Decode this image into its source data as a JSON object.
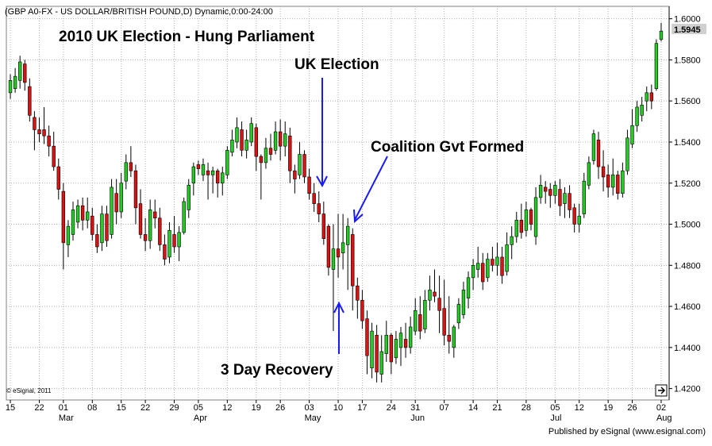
{
  "window": {
    "header": "(GBP A0-FX - US DOLLAR/BRITISH POUND,D) Dynamic,0:00-24:00",
    "copyright": "© eSignal, 2011",
    "footer": "Published by eSignal (www.esignal.com)"
  },
  "annotations": {
    "title": "2010 UK Election - Hung Parliament",
    "election": "UK Election",
    "coalition": "Coalition Gvt Formed",
    "recovery": "3 Day Recovery"
  },
  "colors": {
    "up": "#22cc22",
    "down": "#dd1111",
    "grid": "#b0b0b0",
    "arrow": "#1a1aff",
    "last_bg": "#d0d0d0"
  },
  "chart_data": {
    "type": "candlestick",
    "y_ticks": [
      "1.4200",
      "1.4400",
      "1.4600",
      "1.4800",
      "1.5000",
      "1.5200",
      "1.5400",
      "1.5600",
      "1.5800",
      "1.6000"
    ],
    "ylim": [
      1.416,
      1.6045
    ],
    "last_price": "1.5945",
    "x_ticks": [
      "15",
      "22",
      "01",
      "08",
      "15",
      "22",
      "29",
      "05",
      "12",
      "19",
      "26",
      "03",
      "10",
      "17",
      "24",
      "31",
      "07",
      "14",
      "21",
      "28",
      "05",
      "12",
      "19",
      "26",
      "02"
    ],
    "months": [
      "Mar",
      "Apr",
      "May",
      "Jun",
      "Jul",
      "Aug"
    ],
    "month_after_tick_index": [
      2,
      7,
      11,
      15,
      20,
      24
    ],
    "candles": [
      {
        "o": 1.564,
        "h": 1.573,
        "l": 1.561,
        "c": 1.57
      },
      {
        "o": 1.566,
        "h": 1.576,
        "l": 1.564,
        "c": 1.572
      },
      {
        "o": 1.57,
        "h": 1.582,
        "l": 1.566,
        "c": 1.579
      },
      {
        "o": 1.578,
        "h": 1.58,
        "l": 1.565,
        "c": 1.569
      },
      {
        "o": 1.567,
        "h": 1.571,
        "l": 1.55,
        "c": 1.553
      },
      {
        "o": 1.552,
        "h": 1.555,
        "l": 1.536,
        "c": 1.546
      },
      {
        "o": 1.546,
        "h": 1.552,
        "l": 1.54,
        "c": 1.544
      },
      {
        "o": 1.546,
        "h": 1.557,
        "l": 1.539,
        "c": 1.543
      },
      {
        "o": 1.543,
        "h": 1.548,
        "l": 1.533,
        "c": 1.538
      },
      {
        "o": 1.538,
        "h": 1.545,
        "l": 1.526,
        "c": 1.528
      },
      {
        "o": 1.528,
        "h": 1.532,
        "l": 1.512,
        "c": 1.517
      },
      {
        "o": 1.516,
        "h": 1.52,
        "l": 1.478,
        "c": 1.491
      },
      {
        "o": 1.49,
        "h": 1.502,
        "l": 1.484,
        "c": 1.499
      },
      {
        "o": 1.495,
        "h": 1.511,
        "l": 1.492,
        "c": 1.507
      },
      {
        "o": 1.501,
        "h": 1.512,
        "l": 1.498,
        "c": 1.509
      },
      {
        "o": 1.509,
        "h": 1.513,
        "l": 1.497,
        "c": 1.502
      },
      {
        "o": 1.502,
        "h": 1.513,
        "l": 1.498,
        "c": 1.506
      },
      {
        "o": 1.504,
        "h": 1.508,
        "l": 1.492,
        "c": 1.495
      },
      {
        "o": 1.495,
        "h": 1.5,
        "l": 1.486,
        "c": 1.489
      },
      {
        "o": 1.491,
        "h": 1.509,
        "l": 1.487,
        "c": 1.505
      },
      {
        "o": 1.505,
        "h": 1.509,
        "l": 1.489,
        "c": 1.492
      },
      {
        "o": 1.495,
        "h": 1.522,
        "l": 1.493,
        "c": 1.518
      },
      {
        "o": 1.515,
        "h": 1.522,
        "l": 1.5,
        "c": 1.506
      },
      {
        "o": 1.506,
        "h": 1.525,
        "l": 1.503,
        "c": 1.52
      },
      {
        "o": 1.521,
        "h": 1.534,
        "l": 1.517,
        "c": 1.53
      },
      {
        "o": 1.53,
        "h": 1.538,
        "l": 1.523,
        "c": 1.526
      },
      {
        "o": 1.526,
        "h": 1.529,
        "l": 1.5,
        "c": 1.508
      },
      {
        "o": 1.51,
        "h": 1.517,
        "l": 1.493,
        "c": 1.495
      },
      {
        "o": 1.495,
        "h": 1.503,
        "l": 1.487,
        "c": 1.492
      },
      {
        "o": 1.492,
        "h": 1.512,
        "l": 1.488,
        "c": 1.507
      },
      {
        "o": 1.506,
        "h": 1.512,
        "l": 1.498,
        "c": 1.503
      },
      {
        "o": 1.503,
        "h": 1.508,
        "l": 1.487,
        "c": 1.49
      },
      {
        "o": 1.49,
        "h": 1.495,
        "l": 1.48,
        "c": 1.483
      },
      {
        "o": 1.484,
        "h": 1.501,
        "l": 1.481,
        "c": 1.497
      },
      {
        "o": 1.495,
        "h": 1.504,
        "l": 1.486,
        "c": 1.489
      },
      {
        "o": 1.489,
        "h": 1.499,
        "l": 1.482,
        "c": 1.496
      },
      {
        "o": 1.496,
        "h": 1.513,
        "l": 1.495,
        "c": 1.511
      },
      {
        "o": 1.507,
        "h": 1.522,
        "l": 1.503,
        "c": 1.519
      },
      {
        "o": 1.52,
        "h": 1.53,
        "l": 1.514,
        "c": 1.528
      },
      {
        "o": 1.529,
        "h": 1.531,
        "l": 1.524,
        "c": 1.527
      },
      {
        "o": 1.524,
        "h": 1.532,
        "l": 1.521,
        "c": 1.529
      },
      {
        "o": 1.526,
        "h": 1.53,
        "l": 1.512,
        "c": 1.524
      },
      {
        "o": 1.524,
        "h": 1.528,
        "l": 1.515,
        "c": 1.526
      },
      {
        "o": 1.526,
        "h": 1.527,
        "l": 1.513,
        "c": 1.52
      },
      {
        "o": 1.52,
        "h": 1.528,
        "l": 1.514,
        "c": 1.525
      },
      {
        "o": 1.524,
        "h": 1.538,
        "l": 1.522,
        "c": 1.536
      },
      {
        "o": 1.535,
        "h": 1.546,
        "l": 1.533,
        "c": 1.541
      },
      {
        "o": 1.54,
        "h": 1.552,
        "l": 1.537,
        "c": 1.547
      },
      {
        "o": 1.546,
        "h": 1.55,
        "l": 1.533,
        "c": 1.536
      },
      {
        "o": 1.536,
        "h": 1.546,
        "l": 1.532,
        "c": 1.541
      },
      {
        "o": 1.54,
        "h": 1.552,
        "l": 1.538,
        "c": 1.549
      },
      {
        "o": 1.547,
        "h": 1.549,
        "l": 1.526,
        "c": 1.533
      },
      {
        "o": 1.533,
        "h": 1.534,
        "l": 1.512,
        "c": 1.53
      },
      {
        "o": 1.53,
        "h": 1.542,
        "l": 1.527,
        "c": 1.537
      },
      {
        "o": 1.537,
        "h": 1.544,
        "l": 1.531,
        "c": 1.534
      },
      {
        "o": 1.536,
        "h": 1.55,
        "l": 1.534,
        "c": 1.545
      },
      {
        "o": 1.545,
        "h": 1.551,
        "l": 1.531,
        "c": 1.538
      },
      {
        "o": 1.538,
        "h": 1.55,
        "l": 1.533,
        "c": 1.544
      },
      {
        "o": 1.543,
        "h": 1.547,
        "l": 1.52,
        "c": 1.526
      },
      {
        "o": 1.526,
        "h": 1.529,
        "l": 1.515,
        "c": 1.522
      },
      {
        "o": 1.524,
        "h": 1.54,
        "l": 1.522,
        "c": 1.534
      },
      {
        "o": 1.534,
        "h": 1.536,
        "l": 1.52,
        "c": 1.523
      },
      {
        "o": 1.523,
        "h": 1.527,
        "l": 1.512,
        "c": 1.515
      },
      {
        "o": 1.515,
        "h": 1.52,
        "l": 1.506,
        "c": 1.51
      },
      {
        "o": 1.51,
        "h": 1.516,
        "l": 1.501,
        "c": 1.505
      },
      {
        "o": 1.505,
        "h": 1.511,
        "l": 1.49,
        "c": 1.493
      },
      {
        "o": 1.499,
        "h": 1.5,
        "l": 1.475,
        "c": 1.479
      },
      {
        "o": 1.478,
        "h": 1.5,
        "l": 1.448,
        "c": 1.488
      },
      {
        "o": 1.488,
        "h": 1.505,
        "l": 1.474,
        "c": 1.484
      },
      {
        "o": 1.486,
        "h": 1.505,
        "l": 1.478,
        "c": 1.491
      },
      {
        "o": 1.49,
        "h": 1.503,
        "l": 1.468,
        "c": 1.499
      },
      {
        "o": 1.495,
        "h": 1.498,
        "l": 1.458,
        "c": 1.47
      },
      {
        "o": 1.47,
        "h": 1.474,
        "l": 1.454,
        "c": 1.463
      },
      {
        "o": 1.463,
        "h": 1.468,
        "l": 1.449,
        "c": 1.453
      },
      {
        "o": 1.454,
        "h": 1.458,
        "l": 1.427,
        "c": 1.436
      },
      {
        "o": 1.43,
        "h": 1.452,
        "l": 1.425,
        "c": 1.448
      },
      {
        "o": 1.446,
        "h": 1.451,
        "l": 1.423,
        "c": 1.428
      },
      {
        "o": 1.427,
        "h": 1.446,
        "l": 1.423,
        "c": 1.438
      },
      {
        "o": 1.437,
        "h": 1.453,
        "l": 1.433,
        "c": 1.446
      },
      {
        "o": 1.446,
        "h": 1.447,
        "l": 1.427,
        "c": 1.433
      },
      {
        "o": 1.435,
        "h": 1.448,
        "l": 1.432,
        "c": 1.444
      },
      {
        "o": 1.44,
        "h": 1.45,
        "l": 1.431,
        "c": 1.447
      },
      {
        "o": 1.444,
        "h": 1.452,
        "l": 1.435,
        "c": 1.44
      },
      {
        "o": 1.44,
        "h": 1.455,
        "l": 1.437,
        "c": 1.45
      },
      {
        "o": 1.448,
        "h": 1.464,
        "l": 1.446,
        "c": 1.458
      },
      {
        "o": 1.456,
        "h": 1.465,
        "l": 1.444,
        "c": 1.448
      },
      {
        "o": 1.449,
        "h": 1.468,
        "l": 1.447,
        "c": 1.463
      },
      {
        "o": 1.463,
        "h": 1.475,
        "l": 1.458,
        "c": 1.468
      },
      {
        "o": 1.467,
        "h": 1.478,
        "l": 1.462,
        "c": 1.465
      },
      {
        "o": 1.464,
        "h": 1.475,
        "l": 1.447,
        "c": 1.458
      },
      {
        "o": 1.459,
        "h": 1.473,
        "l": 1.441,
        "c": 1.446
      },
      {
        "o": 1.446,
        "h": 1.465,
        "l": 1.437,
        "c": 1.443
      },
      {
        "o": 1.44,
        "h": 1.451,
        "l": 1.435,
        "c": 1.45
      },
      {
        "o": 1.452,
        "h": 1.464,
        "l": 1.449,
        "c": 1.461
      },
      {
        "o": 1.456,
        "h": 1.472,
        "l": 1.454,
        "c": 1.468
      },
      {
        "o": 1.464,
        "h": 1.477,
        "l": 1.459,
        "c": 1.474
      },
      {
        "o": 1.474,
        "h": 1.483,
        "l": 1.468,
        "c": 1.48
      },
      {
        "o": 1.478,
        "h": 1.489,
        "l": 1.474,
        "c": 1.481
      },
      {
        "o": 1.481,
        "h": 1.486,
        "l": 1.468,
        "c": 1.472
      },
      {
        "o": 1.474,
        "h": 1.486,
        "l": 1.472,
        "c": 1.483
      },
      {
        "o": 1.483,
        "h": 1.489,
        "l": 1.477,
        "c": 1.48
      },
      {
        "o": 1.48,
        "h": 1.491,
        "l": 1.475,
        "c": 1.484
      },
      {
        "o": 1.484,
        "h": 1.489,
        "l": 1.471,
        "c": 1.475
      },
      {
        "o": 1.477,
        "h": 1.496,
        "l": 1.475,
        "c": 1.49
      },
      {
        "o": 1.49,
        "h": 1.499,
        "l": 1.483,
        "c": 1.494
      },
      {
        "o": 1.494,
        "h": 1.506,
        "l": 1.491,
        "c": 1.502
      },
      {
        "o": 1.502,
        "h": 1.51,
        "l": 1.493,
        "c": 1.496
      },
      {
        "o": 1.497,
        "h": 1.511,
        "l": 1.494,
        "c": 1.507
      },
      {
        "o": 1.507,
        "h": 1.508,
        "l": 1.497,
        "c": 1.5
      },
      {
        "o": 1.494,
        "h": 1.518,
        "l": 1.49,
        "c": 1.513
      },
      {
        "o": 1.513,
        "h": 1.524,
        "l": 1.51,
        "c": 1.519
      },
      {
        "o": 1.518,
        "h": 1.521,
        "l": 1.51,
        "c": 1.516
      },
      {
        "o": 1.517,
        "h": 1.52,
        "l": 1.508,
        "c": 1.514
      },
      {
        "o": 1.514,
        "h": 1.521,
        "l": 1.51,
        "c": 1.519
      },
      {
        "o": 1.517,
        "h": 1.522,
        "l": 1.504,
        "c": 1.509
      },
      {
        "o": 1.51,
        "h": 1.518,
        "l": 1.503,
        "c": 1.515
      },
      {
        "o": 1.515,
        "h": 1.519,
        "l": 1.503,
        "c": 1.507
      },
      {
        "o": 1.508,
        "h": 1.51,
        "l": 1.496,
        "c": 1.5
      },
      {
        "o": 1.5,
        "h": 1.51,
        "l": 1.496,
        "c": 1.504
      },
      {
        "o": 1.505,
        "h": 1.525,
        "l": 1.503,
        "c": 1.521
      },
      {
        "o": 1.519,
        "h": 1.533,
        "l": 1.517,
        "c": 1.53
      },
      {
        "o": 1.531,
        "h": 1.546,
        "l": 1.529,
        "c": 1.544
      },
      {
        "o": 1.541,
        "h": 1.545,
        "l": 1.522,
        "c": 1.528
      },
      {
        "o": 1.528,
        "h": 1.536,
        "l": 1.516,
        "c": 1.523
      },
      {
        "o": 1.524,
        "h": 1.529,
        "l": 1.513,
        "c": 1.518
      },
      {
        "o": 1.518,
        "h": 1.532,
        "l": 1.514,
        "c": 1.524
      },
      {
        "o": 1.524,
        "h": 1.526,
        "l": 1.512,
        "c": 1.515
      },
      {
        "o": 1.515,
        "h": 1.53,
        "l": 1.513,
        "c": 1.526
      },
      {
        "o": 1.526,
        "h": 1.546,
        "l": 1.524,
        "c": 1.542
      },
      {
        "o": 1.539,
        "h": 1.556,
        "l": 1.537,
        "c": 1.548
      },
      {
        "o": 1.548,
        "h": 1.56,
        "l": 1.545,
        "c": 1.557
      },
      {
        "o": 1.553,
        "h": 1.562,
        "l": 1.55,
        "c": 1.558
      },
      {
        "o": 1.56,
        "h": 1.567,
        "l": 1.555,
        "c": 1.564
      },
      {
        "o": 1.564,
        "h": 1.568,
        "l": 1.556,
        "c": 1.56
      },
      {
        "o": 1.566,
        "h": 1.59,
        "l": 1.565,
        "c": 1.588
      },
      {
        "o": 1.59,
        "h": 1.598,
        "l": 1.589,
        "c": 1.594
      }
    ]
  }
}
